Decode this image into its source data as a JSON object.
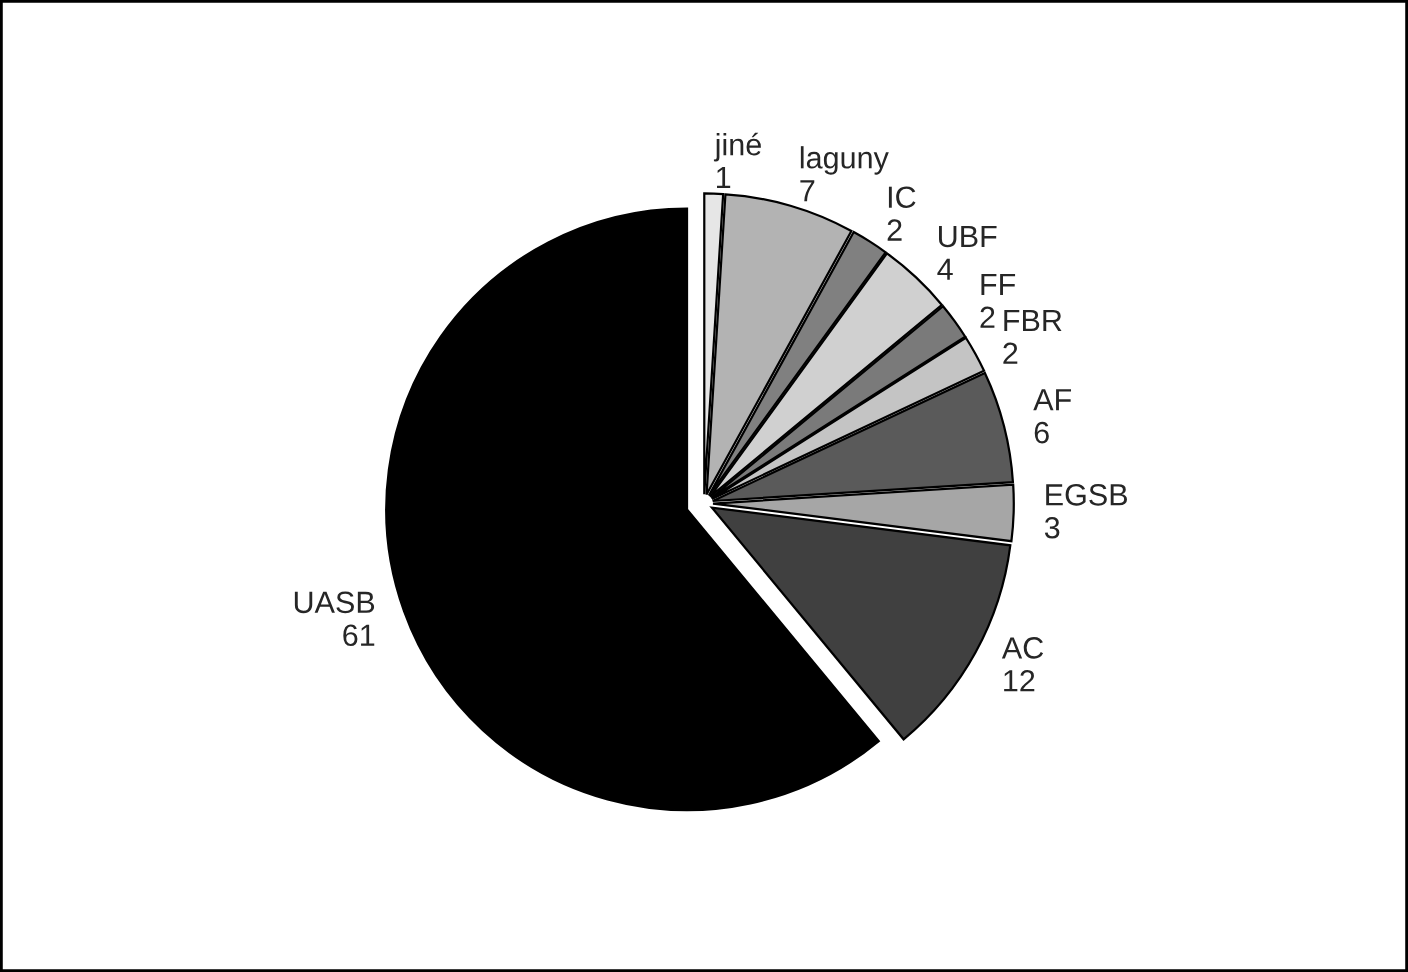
{
  "chart_data": {
    "type": "pie",
    "categories": [
      "jiné",
      "laguny",
      "IC",
      "UBF",
      "FF",
      "FBR",
      "AF",
      "EGSB",
      "AC",
      "UASB"
    ],
    "values": [
      1,
      7,
      2,
      4,
      2,
      2,
      6,
      3,
      12,
      61
    ],
    "colors": [
      "#e6e6e6",
      "#b3b3b3",
      "#808080",
      "#d0d0d0",
      "#7a7a7a",
      "#c4c4c4",
      "#5a5a5a",
      "#a6a6a6",
      "#404040",
      "#000000"
    ],
    "data_labels": true
  }
}
